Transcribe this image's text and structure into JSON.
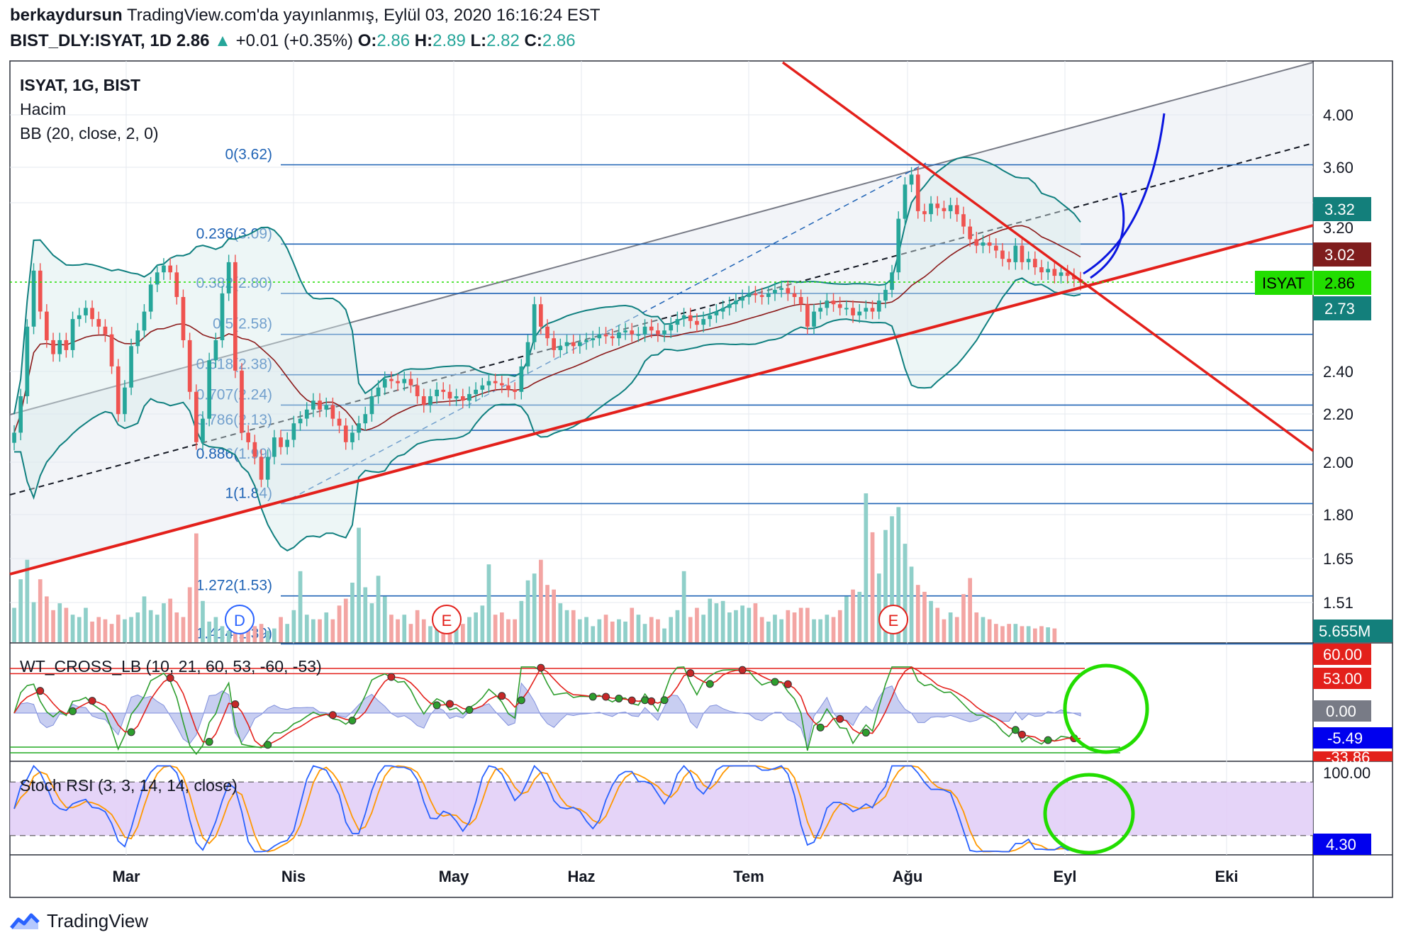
{
  "header": {
    "author": "berkaydursun",
    "published": "TradingView.com'da yayınlanmış, Eylül 03, 2020 16:16:24 EST",
    "symbol_full": "BIST_DLY:ISYAT, 1D",
    "last": "2.86",
    "arrow": "▲",
    "change": "+0.01 (+0.35%)",
    "o_label": "O:",
    "o": "2.86",
    "h_label": "H:",
    "h": "2.89",
    "l_label": "L:",
    "l": "2.82",
    "c_label": "C:",
    "c": "2.86"
  },
  "legend": {
    "series": "ISYAT, 1G, BIST",
    "volume": "Hacim",
    "bb": "BB (20, close, 2, 0)",
    "wt": "WT_CROSS_LB (10, 21, 60, 53, -60, -53)",
    "stoch": "Stoch RSI (3, 3, 14, 14, close)"
  },
  "brand": "TradingView",
  "colors": {
    "up": "#26a69a",
    "down": "#ef5350",
    "fib": "#1f63b5",
    "trend": "#e3201b",
    "bb": "#0f7f7f",
    "basis": "#8b1a1a",
    "arc": "#0b16e0",
    "circle": "#22dd00",
    "stoch_k": "#2962ff",
    "stoch_d": "#ff9800"
  },
  "chart_data": {
    "type": "candlestick",
    "symbol": "ISYAT",
    "x_axis": [
      "Mar",
      "Nis",
      "May",
      "Haz",
      "Tem",
      "Ağu",
      "Eyl",
      "Eki"
    ],
    "y_axis_ticks": [
      "4.00",
      "3.60",
      "3.20",
      "2.40",
      "2.20",
      "2.00",
      "1.80",
      "1.65",
      "1.51"
    ],
    "y_scale": "log",
    "price_badges": [
      {
        "text": "3.32",
        "color": "#137f7b"
      },
      {
        "text": "3.02",
        "color": "#7f1d1d"
      },
      {
        "symbol": "ISYAT",
        "text": "2.86",
        "color": "#22dd00"
      },
      {
        "text": "2.73",
        "color": "#137f7b"
      },
      {
        "text": "5.655M",
        "color": "#137f7b"
      }
    ],
    "fib_levels": [
      {
        "ratio": "0",
        "value": 3.62,
        "label": "0(3.62)"
      },
      {
        "ratio": "0.236",
        "value": 3.09,
        "label": "0.236(3.09)"
      },
      {
        "ratio": "0.382",
        "value": 2.8,
        "label": "0.382(2.80)"
      },
      {
        "ratio": "0.5",
        "value": 2.58,
        "label": "0.5(2.58)"
      },
      {
        "ratio": "0.618",
        "value": 2.38,
        "label": "0.618(2.38)"
      },
      {
        "ratio": "0.707",
        "value": 2.24,
        "label": "0.707(2.24)"
      },
      {
        "ratio": "0.786",
        "value": 2.13,
        "label": "0.786(2.13)"
      },
      {
        "ratio": "0.886",
        "value": 1.99,
        "label": "0.886(1.99)"
      },
      {
        "ratio": "1",
        "value": 1.84,
        "label": "1(1.84)"
      },
      {
        "ratio": "1.272",
        "value": 1.53,
        "label": "1.272(1.53)"
      },
      {
        "ratio": "1.414",
        "value": 1.39,
        "label": "1.414(1.39)"
      }
    ],
    "price": [
      2.12,
      2.28,
      2.62,
      2.93,
      2.7,
      2.55,
      2.48,
      2.55,
      2.5,
      2.66,
      2.68,
      2.72,
      2.66,
      2.62,
      2.58,
      2.42,
      2.2,
      2.32,
      2.52,
      2.6,
      2.7,
      2.85,
      2.92,
      2.96,
      2.92,
      2.78,
      2.55,
      2.3,
      2.08,
      2.18,
      2.45,
      2.55,
      2.8,
      2.98,
      2.4,
      2.12,
      2.08,
      2.02,
      1.93,
      2.02,
      2.1,
      2.06,
      2.09,
      2.16,
      2.18,
      2.22,
      2.26,
      2.22,
      2.24,
      2.18,
      2.15,
      2.08,
      2.12,
      2.16,
      2.2,
      2.28,
      2.32,
      2.36,
      2.35,
      2.34,
      2.36,
      2.33,
      2.28,
      2.24,
      2.28,
      2.31,
      2.3,
      2.27,
      2.28,
      2.26,
      2.29,
      2.31,
      2.33,
      2.35,
      2.34,
      2.33,
      2.31,
      2.3,
      2.42,
      2.54,
      2.74,
      2.62,
      2.56,
      2.5,
      2.52,
      2.54,
      2.52,
      2.54,
      2.55,
      2.56,
      2.58,
      2.57,
      2.56,
      2.59,
      2.6,
      2.58,
      2.58,
      2.62,
      2.6,
      2.58,
      2.6,
      2.63,
      2.66,
      2.68,
      2.65,
      2.63,
      2.66,
      2.68,
      2.7,
      2.72,
      2.74,
      2.76,
      2.78,
      2.8,
      2.79,
      2.78,
      2.8,
      2.82,
      2.83,
      2.8,
      2.78,
      2.74,
      2.62,
      2.7,
      2.72,
      2.76,
      2.74,
      2.72,
      2.72,
      2.68,
      2.7,
      2.72,
      2.7,
      2.76,
      2.82,
      2.92,
      3.25,
      3.48,
      3.55,
      3.3,
      3.28,
      3.35,
      3.32,
      3.3,
      3.34,
      3.28,
      3.2,
      3.12,
      3.08,
      3.1,
      3.08,
      3.05,
      3.0,
      2.98,
      3.08,
      2.98,
      3.0,
      2.95,
      2.92,
      2.94,
      2.9,
      2.92,
      2.9,
      2.88,
      2.86
    ],
    "volume": [
      0.3,
      0.55,
      0.72,
      0.35,
      0.55,
      0.4,
      0.28,
      0.34,
      0.3,
      0.24,
      0.22,
      0.3,
      0.18,
      0.22,
      0.2,
      0.16,
      0.24,
      0.2,
      0.22,
      0.26,
      0.4,
      0.28,
      0.24,
      0.34,
      0.38,
      0.26,
      0.22,
      0.48,
      0.95,
      0.36,
      0.18,
      0.22,
      0.14,
      0.1,
      0.1,
      0.08,
      0.12,
      0.14,
      0.16,
      0.1,
      0.12,
      0.22,
      0.16,
      0.28,
      0.62,
      0.24,
      0.2,
      0.2,
      0.26,
      0.2,
      0.32,
      0.38,
      0.52,
      1.0,
      0.48,
      0.34,
      0.58,
      0.4,
      0.24,
      0.2,
      0.24,
      0.16,
      0.28,
      0.2,
      0.14,
      0.2,
      0.18,
      0.22,
      0.2,
      0.16,
      0.22,
      0.26,
      0.32,
      0.68,
      0.24,
      0.26,
      0.2,
      0.2,
      0.36,
      0.54,
      0.6,
      0.72,
      0.5,
      0.46,
      0.34,
      0.28,
      0.28,
      0.2,
      0.22,
      0.14,
      0.2,
      0.24,
      0.18,
      0.2,
      0.18,
      0.3,
      0.24,
      0.16,
      0.22,
      0.2,
      0.12,
      0.22,
      0.28,
      0.62,
      0.22,
      0.3,
      0.24,
      0.38,
      0.34,
      0.36,
      0.26,
      0.28,
      0.32,
      0.3,
      0.34,
      0.22,
      0.18,
      0.24,
      0.2,
      0.28,
      0.26,
      0.3,
      0.3,
      0.2,
      0.2,
      0.24,
      0.22,
      0.28,
      0.4,
      0.46,
      0.44,
      1.3,
      0.96,
      0.6,
      0.98,
      1.1,
      1.18,
      0.86,
      0.66,
      0.5,
      0.44,
      0.36,
      0.3,
      0.2,
      0.26,
      0.22,
      0.42,
      0.56,
      0.26,
      0.22,
      0.2,
      0.16,
      0.14,
      0.16,
      0.16,
      0.14,
      0.14,
      0.12,
      0.14,
      0.13,
      0.12
    ],
    "wt": {
      "panel_ticks": [
        "60.00",
        "53.00",
        "0.00"
      ],
      "badges": [
        "-5.49",
        "-33.86"
      ]
    },
    "stoch_rsi": {
      "panel_ticks": [
        "100.00"
      ],
      "badge": "4.30"
    }
  }
}
